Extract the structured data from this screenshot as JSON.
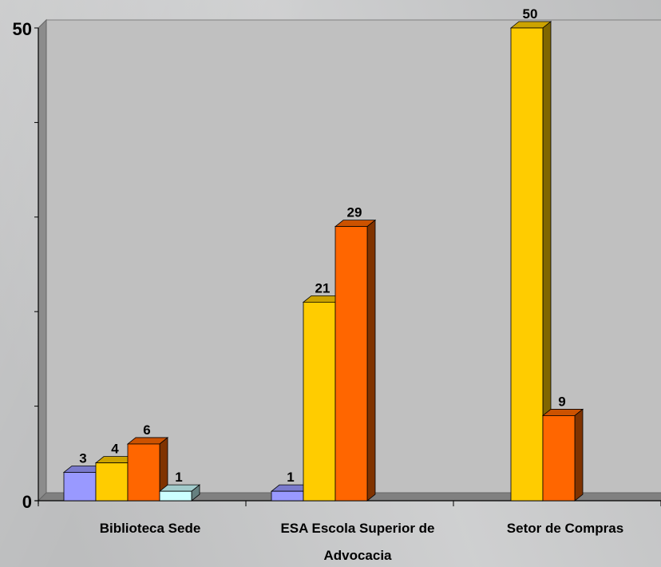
{
  "chart_data": {
    "type": "bar",
    "categories": [
      [
        "Biblioteca Sede"
      ],
      [
        "ESA Escola Superior de",
        "Advocacia"
      ],
      [
        "Setor de Compras"
      ]
    ],
    "series": [
      {
        "color": "#9999ff",
        "values": [
          3,
          1,
          null
        ]
      },
      {
        "color": "#ffcc00",
        "values": [
          4,
          21,
          50
        ]
      },
      {
        "color": "#ff6600",
        "values": [
          6,
          29,
          9
        ]
      },
      {
        "color": "#ccffff",
        "values": [
          1,
          null,
          null
        ]
      }
    ],
    "ylim": [
      0,
      50
    ],
    "yticks": [
      "0",
      "50"
    ],
    "grid": false,
    "legend": "none",
    "plot_color": "#c0c0c0"
  }
}
